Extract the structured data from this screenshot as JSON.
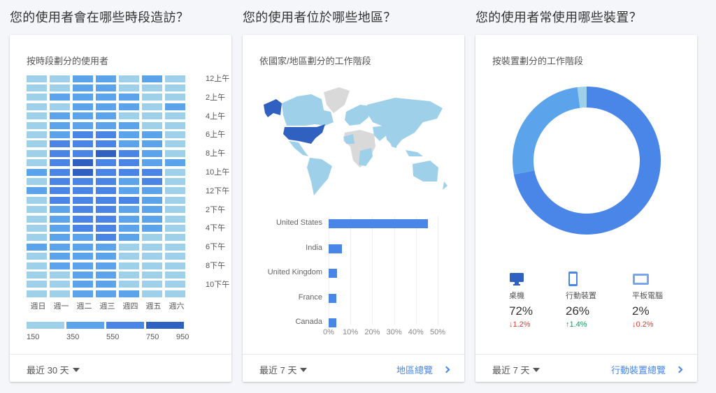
{
  "sections": [
    {
      "title": "您的使用者會在哪些時段造訪？",
      "card": {
        "subtitle": "按時段劃分的使用者",
        "footer": {
          "range": "最近 30 天"
        }
      }
    },
    {
      "title": "您的使用者位於哪些地區？",
      "card": {
        "subtitle": "依國家/地區劃分的工作階段",
        "footer": {
          "range": "最近 7 天",
          "link": "地區總覽"
        }
      }
    },
    {
      "title": "您的使用者常使用哪些裝置？",
      "card": {
        "subtitle": "按裝置劃分的工作階段",
        "footer": {
          "range": "最近 7 天",
          "link": "行動裝置總覽"
        }
      }
    }
  ],
  "colors": {
    "level0": "#9fd0ea",
    "level1": "#5ba3ea",
    "level2": "#4a84e4",
    "level3": "#3060c0",
    "map_us": "#3060c0",
    "map_data": "#9fd0ea",
    "map_nodata": "#d9d9d9",
    "bar": "#4a86e8",
    "donut_desktop": "#4a86e8",
    "donut_mobile": "#5ba3ea",
    "donut_tablet": "#9fd0ea",
    "down": "#d23f31",
    "up": "#0f9d58",
    "link": "#4a86e8"
  },
  "chart_data": [
    {
      "type": "heatmap",
      "title": "按時段劃分的使用者",
      "x": [
        "週日",
        "週一",
        "週二",
        "週三",
        "週四",
        "週五",
        "週六"
      ],
      "y_tick_labels": [
        "12上午",
        "2上午",
        "4上午",
        "6上午",
        "8上午",
        "10上午",
        "12下午",
        "2下午",
        "4下午",
        "6下午",
        "8下午",
        "10下午"
      ],
      "y_hours": 24,
      "legend": {
        "ticks": [
          150,
          350,
          550,
          750,
          950
        ],
        "bins": [
          "150-350",
          "350-550",
          "550-750",
          "750-950"
        ]
      },
      "levels": [
        [
          0,
          0,
          1,
          1,
          0,
          1,
          0
        ],
        [
          0,
          0,
          1,
          1,
          0,
          0,
          0
        ],
        [
          0,
          1,
          1,
          1,
          1,
          0,
          0
        ],
        [
          0,
          0,
          1,
          1,
          1,
          0,
          1
        ],
        [
          0,
          1,
          1,
          1,
          0,
          0,
          0
        ],
        [
          0,
          1,
          1,
          1,
          1,
          0,
          0
        ],
        [
          0,
          1,
          2,
          2,
          1,
          1,
          0
        ],
        [
          0,
          2,
          2,
          2,
          1,
          1,
          0
        ],
        [
          0,
          2,
          2,
          3,
          2,
          1,
          0
        ],
        [
          0,
          2,
          3,
          2,
          2,
          1,
          1
        ],
        [
          1,
          2,
          3,
          2,
          2,
          2,
          0
        ],
        [
          0,
          2,
          2,
          2,
          1,
          2,
          0
        ],
        [
          1,
          2,
          2,
          2,
          1,
          1,
          0
        ],
        [
          0,
          2,
          2,
          2,
          2,
          1,
          0
        ],
        [
          0,
          1,
          2,
          2,
          1,
          1,
          0
        ],
        [
          0,
          1,
          2,
          2,
          1,
          1,
          0
        ],
        [
          0,
          1,
          2,
          2,
          1,
          1,
          0
        ],
        [
          0,
          1,
          1,
          2,
          1,
          0,
          0
        ],
        [
          1,
          1,
          1,
          1,
          0,
          0,
          0
        ],
        [
          0,
          1,
          1,
          1,
          0,
          0,
          0
        ],
        [
          0,
          1,
          1,
          1,
          0,
          0,
          0
        ],
        [
          0,
          0,
          1,
          1,
          0,
          0,
          0
        ],
        [
          0,
          0,
          1,
          1,
          0,
          0,
          0
        ],
        [
          0,
          0,
          1,
          1,
          1,
          0,
          0
        ]
      ]
    },
    {
      "type": "bar",
      "orientation": "horizontal",
      "title": "依國家/地區劃分的工作階段",
      "categories": [
        "United States",
        "India",
        "United Kingdom",
        "France",
        "Canada"
      ],
      "values": [
        45.5,
        6,
        4,
        3.5,
        3.5
      ],
      "x_ticks": [
        "0%",
        "10%",
        "20%",
        "30%",
        "40%",
        "50%"
      ],
      "xlim": [
        0,
        50
      ],
      "grid": true
    },
    {
      "type": "pie",
      "subtype": "donut",
      "title": "按裝置劃分的工作階段",
      "categories": [
        "桌機",
        "行動裝置",
        "平板電腦"
      ],
      "values": [
        72,
        26,
        2
      ],
      "changes": [
        "↓1.2%",
        "↑1.4%",
        "↓0.2%"
      ],
      "change_direction": [
        "down",
        "up",
        "down"
      ]
    }
  ],
  "devices": [
    {
      "icon": "desktop-icon",
      "label": "桌機",
      "value": "72%",
      "change": "1.2%",
      "arrow": "↓"
    },
    {
      "icon": "mobile-icon",
      "label": "行動裝置",
      "value": "26%",
      "change": "1.4%",
      "arrow": "↑"
    },
    {
      "icon": "tablet-icon",
      "label": "平板電腦",
      "value": "2%",
      "change": "0.2%",
      "arrow": "↓"
    }
  ],
  "bars": [
    {
      "label": "United States",
      "value": 45.5
    },
    {
      "label": "India",
      "value": 6
    },
    {
      "label": "United Kingdom",
      "value": 4
    },
    {
      "label": "France",
      "value": 3.5
    },
    {
      "label": "Canada",
      "value": 3.5
    }
  ]
}
